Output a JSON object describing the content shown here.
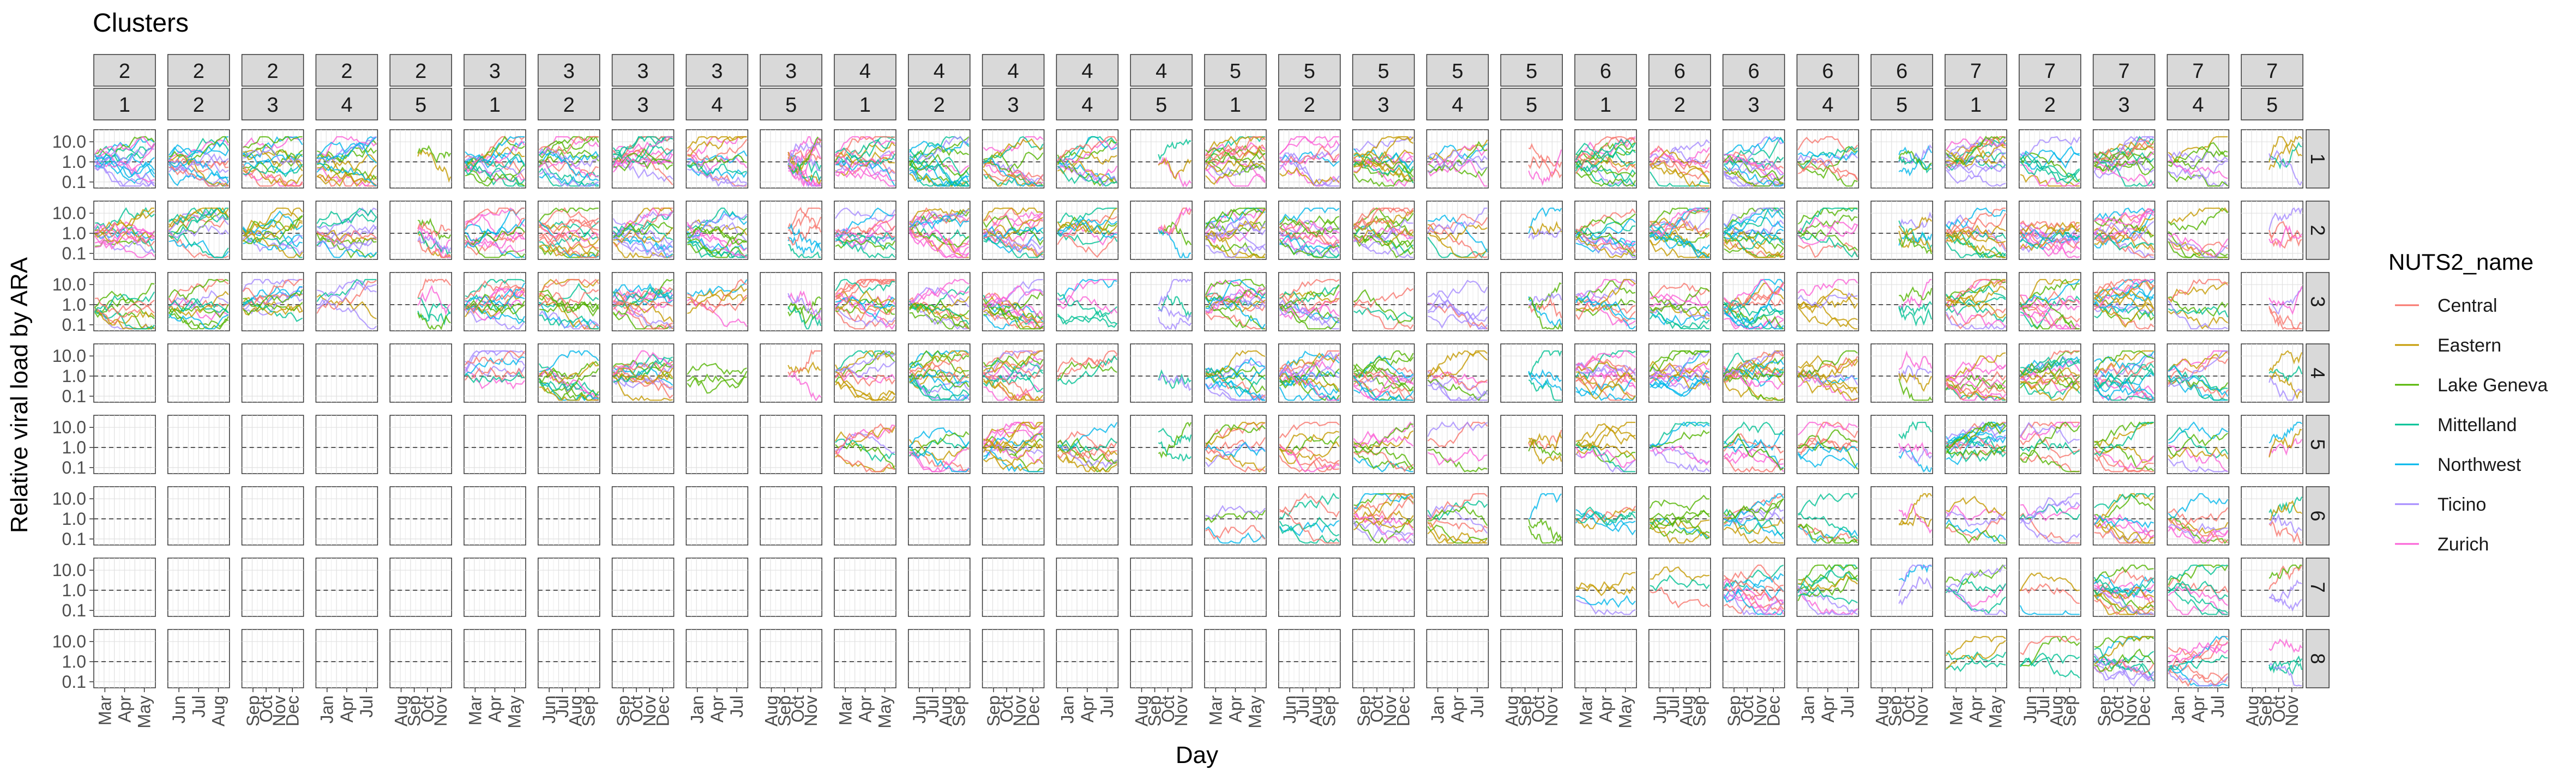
{
  "chart_data": {
    "type": "line",
    "title": "Clusters",
    "xlabel": "Day",
    "ylabel": "Relative viral load by ARA",
    "y_scale": "log10",
    "y_ticks": [
      "0.1",
      "1.0",
      "10.0"
    ],
    "y_range": [
      0.05,
      40
    ],
    "grid": true,
    "facet_strip_top_row1": [
      "2",
      "2",
      "2",
      "2",
      "2",
      "3",
      "3",
      "3",
      "3",
      "3",
      "4",
      "4",
      "4",
      "4",
      "4",
      "5",
      "5",
      "5",
      "5",
      "5",
      "6",
      "6",
      "6",
      "6",
      "6",
      "7",
      "7",
      "7",
      "7",
      "7"
    ],
    "facet_strip_top_row2": [
      "1",
      "2",
      "3",
      "4",
      "5",
      "1",
      "2",
      "3",
      "4",
      "5",
      "1",
      "2",
      "3",
      "4",
      "5",
      "1",
      "2",
      "3",
      "4",
      "5",
      "1",
      "2",
      "3",
      "4",
      "5",
      "1",
      "2",
      "3",
      "4",
      "5"
    ],
    "facet_strip_right": [
      "1",
      "2",
      "3",
      "4",
      "5",
      "6",
      "7",
      "8"
    ],
    "x_tick_labels": [
      [
        "Mar",
        "Apr",
        "May"
      ],
      [
        "Jun",
        "Jul",
        "Aug"
      ],
      [
        "Sep",
        "Oct",
        "Nov",
        "Dec"
      ],
      [
        "Jan",
        "Apr",
        "Jul"
      ],
      [
        "Aug",
        "Sep",
        "Oct",
        "Nov"
      ],
      [
        "Mar",
        "Apr",
        "May"
      ],
      [
        "Jun",
        "Jul",
        "Aug",
        "Sep"
      ],
      [
        "Sep",
        "Oct",
        "Nov",
        "Dec"
      ],
      [
        "Jan",
        "Apr",
        "Jul"
      ],
      [
        "Aug",
        "Sep",
        "Oct",
        "Nov"
      ],
      [
        "Mar",
        "Apr",
        "May"
      ],
      [
        "Jun",
        "Jul",
        "Aug",
        "Sep"
      ],
      [
        "Sep",
        "Oct",
        "Nov",
        "Dec"
      ],
      [
        "Jan",
        "Apr",
        "Jul"
      ],
      [
        "Aug",
        "Sep",
        "Oct",
        "Nov"
      ],
      [
        "Mar",
        "Apr",
        "May"
      ],
      [
        "Jun",
        "Jul",
        "Aug",
        "Sep"
      ],
      [
        "Sep",
        "Oct",
        "Nov",
        "Dec"
      ],
      [
        "Jan",
        "Apr",
        "Jul"
      ],
      [
        "Aug",
        "Sep",
        "Oct",
        "Nov"
      ],
      [
        "Mar",
        "Apr",
        "May"
      ],
      [
        "Jun",
        "Jul",
        "Aug",
        "Sep"
      ],
      [
        "Sep",
        "Oct",
        "Nov",
        "Dec"
      ],
      [
        "Jan",
        "Apr",
        "Jul"
      ],
      [
        "Aug",
        "Sep",
        "Oct",
        "Nov"
      ],
      [
        "Mar",
        "Apr",
        "May"
      ],
      [
        "Jun",
        "Jul",
        "Aug",
        "Sep"
      ],
      [
        "Sep",
        "Oct",
        "Nov",
        "Dec"
      ],
      [
        "Jan",
        "Apr",
        "Jul"
      ],
      [
        "Aug",
        "Sep",
        "Oct",
        "Nov"
      ]
    ],
    "legend": {
      "title": "NUTS2_name",
      "position": "right",
      "entries": [
        {
          "name": "Central",
          "color": "#F8766D"
        },
        {
          "name": "Eastern",
          "color": "#C49A00"
        },
        {
          "name": "Lake Geneva",
          "color": "#53B400"
        },
        {
          "name": "Mittelland",
          "color": "#00C094"
        },
        {
          "name": "Northwest",
          "color": "#00B6EB"
        },
        {
          "name": "Ticino",
          "color": "#A58AFF"
        },
        {
          "name": "Zurich",
          "color": "#FB61D7"
        }
      ]
    },
    "reference_line": {
      "y": 1.0,
      "style": "dashed",
      "color": "#555555"
    },
    "panel_series_counts": [
      [
        15,
        15,
        15,
        15,
        2,
        15,
        15,
        15,
        12,
        15,
        15,
        15,
        12,
        12,
        3,
        15,
        10,
        15,
        8,
        3,
        15,
        10,
        15,
        8,
        5,
        15,
        9,
        15,
        8,
        4
      ],
      [
        14,
        12,
        12,
        12,
        8,
        12,
        15,
        15,
        15,
        6,
        12,
        15,
        15,
        10,
        4,
        15,
        15,
        15,
        7,
        3,
        12,
        15,
        15,
        8,
        6,
        12,
        15,
        15,
        8,
        4
      ],
      [
        10,
        12,
        12,
        6,
        5,
        15,
        12,
        15,
        6,
        5,
        15,
        12,
        15,
        6,
        4,
        15,
        12,
        4,
        6,
        5,
        10,
        10,
        15,
        6,
        4,
        12,
        12,
        15,
        6,
        4
      ],
      [
        0,
        0,
        0,
        0,
        0,
        8,
        12,
        15,
        3,
        3,
        10,
        15,
        15,
        4,
        2,
        12,
        15,
        15,
        8,
        4,
        15,
        15,
        15,
        10,
        4,
        12,
        15,
        15,
        10,
        4
      ],
      [
        0,
        0,
        0,
        0,
        0,
        0,
        0,
        0,
        0,
        0,
        8,
        8,
        15,
        10,
        3,
        8,
        8,
        8,
        4,
        4,
        8,
        6,
        8,
        8,
        4,
        15,
        8,
        8,
        6,
        3
      ],
      [
        0,
        0,
        0,
        0,
        0,
        0,
        0,
        0,
        0,
        0,
        0,
        0,
        0,
        0,
        0,
        4,
        6,
        12,
        8,
        3,
        6,
        8,
        10,
        6,
        3,
        6,
        6,
        10,
        8,
        4
      ],
      [
        0,
        0,
        0,
        0,
        0,
        0,
        0,
        0,
        0,
        0,
        0,
        0,
        0,
        0,
        0,
        0,
        0,
        0,
        0,
        0,
        4,
        3,
        12,
        10,
        3,
        6,
        3,
        15,
        8,
        4
      ],
      [
        0,
        0,
        0,
        0,
        0,
        0,
        0,
        0,
        0,
        0,
        0,
        0,
        0,
        0,
        0,
        0,
        0,
        0,
        0,
        0,
        0,
        0,
        0,
        0,
        0,
        4,
        4,
        12,
        10,
        4
      ]
    ]
  }
}
